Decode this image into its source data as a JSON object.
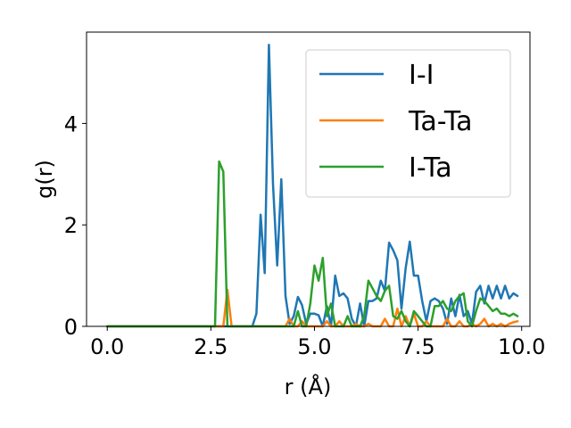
{
  "chart_data": {
    "type": "line",
    "title": "",
    "xlabel": "r (Å)",
    "ylabel": "g(r)",
    "xlim": [
      -0.5,
      10.2
    ],
    "ylim": [
      0,
      5.8
    ],
    "xticks": [
      0.0,
      2.5,
      5.0,
      7.5,
      10.0
    ],
    "xtick_labels": [
      "0.0",
      "2.5",
      "5.0",
      "7.5",
      "10.0"
    ],
    "yticks": [
      0,
      2,
      4
    ],
    "ytick_labels": [
      "0",
      "2",
      "4"
    ],
    "grid": false,
    "legend_position": "upper right",
    "series": [
      {
        "name": "I-I",
        "color": "#1f77b4",
        "x": [
          0.0,
          3.5,
          3.6,
          3.7,
          3.8,
          3.9,
          4.0,
          4.1,
          4.2,
          4.3,
          4.4,
          4.5,
          4.6,
          4.7,
          4.8,
          4.9,
          5.0,
          5.1,
          5.2,
          5.3,
          5.4,
          5.5,
          5.6,
          5.7,
          5.8,
          5.9,
          6.0,
          6.1,
          6.2,
          6.3,
          6.4,
          6.5,
          6.6,
          6.7,
          6.8,
          6.9,
          7.0,
          7.1,
          7.2,
          7.3,
          7.4,
          7.5,
          7.6,
          7.7,
          7.8,
          7.9,
          8.0,
          8.1,
          8.2,
          8.3,
          8.4,
          8.5,
          8.6,
          8.7,
          8.8,
          8.9,
          9.0,
          9.1,
          9.2,
          9.3,
          9.4,
          9.5,
          9.6,
          9.7,
          9.8,
          9.9
        ],
        "y": [
          0.0,
          0.0,
          0.25,
          2.2,
          1.05,
          5.55,
          2.8,
          1.2,
          2.9,
          0.6,
          0.05,
          0.2,
          0.58,
          0.42,
          0.05,
          0.25,
          0.25,
          0.22,
          0.0,
          0.4,
          0.0,
          1.0,
          0.6,
          0.65,
          0.55,
          0.15,
          0.0,
          0.45,
          0.0,
          0.5,
          0.5,
          0.55,
          0.9,
          0.7,
          1.65,
          1.5,
          1.3,
          0.35,
          1.15,
          1.67,
          1.0,
          1.0,
          0.5,
          0.1,
          0.5,
          0.55,
          0.5,
          0.35,
          0.05,
          0.55,
          0.2,
          0.62,
          0.2,
          0.3,
          0.05,
          0.68,
          0.8,
          0.45,
          0.8,
          0.55,
          0.8,
          0.55,
          0.8,
          0.55,
          0.65,
          0.6
        ]
      },
      {
        "name": "Ta-Ta",
        "color": "#ff7f0e",
        "x": [
          0.0,
          2.8,
          2.9,
          3.0,
          3.1,
          4.3,
          4.4,
          4.5,
          4.6,
          4.7,
          4.8,
          4.9,
          5.0,
          5.1,
          5.2,
          5.3,
          5.4,
          5.5,
          5.6,
          5.7,
          5.8,
          5.9,
          6.0,
          6.1,
          6.2,
          6.3,
          6.4,
          6.5,
          6.6,
          6.7,
          6.8,
          6.9,
          7.0,
          7.1,
          7.2,
          7.3,
          7.4,
          7.5,
          7.6,
          7.7,
          7.8,
          7.9,
          8.0,
          8.1,
          8.2,
          8.3,
          8.4,
          8.5,
          8.6,
          8.7,
          8.8,
          8.9,
          9.0,
          9.1,
          9.2,
          9.3,
          9.4,
          9.5,
          9.6,
          9.7,
          9.8,
          9.9
        ],
        "y": [
          0.0,
          0.0,
          0.72,
          0.0,
          0.0,
          0.0,
          0.15,
          0.0,
          0.0,
          0.1,
          0.0,
          0.0,
          0.0,
          0.0,
          0.0,
          0.1,
          0.0,
          0.0,
          0.1,
          0.0,
          0.0,
          0.0,
          0.05,
          0.0,
          0.0,
          0.05,
          0.0,
          0.0,
          0.0,
          0.15,
          0.0,
          0.0,
          0.35,
          0.0,
          0.2,
          0.0,
          0.25,
          0.0,
          0.0,
          0.1,
          0.0,
          0.0,
          0.0,
          0.0,
          0.15,
          0.0,
          0.0,
          0.1,
          0.0,
          0.0,
          0.05,
          0.0,
          0.05,
          0.15,
          0.0,
          0.05,
          0.0,
          0.05,
          0.0,
          0.05,
          0.08,
          0.1
        ]
      },
      {
        "name": "I-Ta",
        "color": "#2ca02c",
        "x": [
          0.0,
          2.5,
          2.6,
          2.7,
          2.8,
          2.9,
          3.0,
          4.4,
          4.5,
          4.6,
          4.7,
          4.8,
          4.9,
          5.0,
          5.1,
          5.2,
          5.3,
          5.4,
          5.5,
          5.6,
          5.7,
          5.8,
          5.9,
          6.0,
          6.1,
          6.2,
          6.3,
          6.4,
          6.5,
          6.6,
          6.7,
          6.8,
          6.9,
          7.0,
          7.1,
          7.2,
          7.3,
          7.4,
          7.5,
          7.6,
          7.7,
          7.8,
          7.9,
          8.0,
          8.1,
          8.2,
          8.3,
          8.4,
          8.5,
          8.6,
          8.7,
          8.8,
          8.9,
          9.0,
          9.1,
          9.2,
          9.3,
          9.4,
          9.5,
          9.6,
          9.7,
          9.8,
          9.9
        ],
        "y": [
          0.0,
          0.0,
          0.0,
          3.25,
          3.05,
          0.0,
          0.0,
          0.0,
          0.0,
          0.3,
          0.0,
          0.0,
          0.45,
          1.2,
          0.9,
          1.35,
          0.2,
          0.45,
          0.0,
          0.0,
          0.0,
          0.2,
          0.0,
          0.0,
          0.0,
          0.2,
          0.9,
          0.75,
          0.6,
          0.5,
          0.7,
          0.8,
          0.2,
          0.15,
          0.3,
          0.1,
          0.0,
          0.3,
          0.2,
          0.1,
          0.0,
          0.0,
          0.4,
          0.4,
          0.5,
          0.35,
          0.3,
          0.5,
          0.6,
          0.65,
          0.1,
          0.0,
          0.3,
          0.55,
          0.5,
          0.4,
          0.3,
          0.35,
          0.25,
          0.25,
          0.2,
          0.25,
          0.2
        ]
      }
    ]
  }
}
